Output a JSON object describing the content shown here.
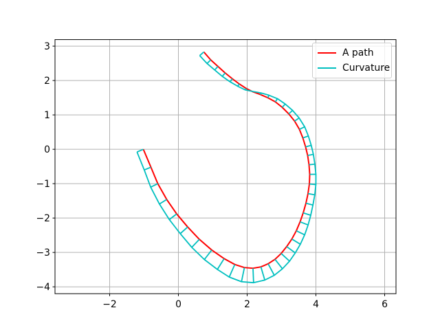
{
  "figure": {
    "background": "#ffffff",
    "spine_color": "#000000",
    "tick_color": "#000000",
    "legend": {
      "position": "upper right",
      "border_color": "#cccccc",
      "entries": [
        {
          "label": "A path",
          "color": "#ff0000"
        },
        {
          "label": "Curvature",
          "color": "#00bfbf"
        }
      ]
    }
  },
  "chart_data": {
    "type": "line",
    "title": "",
    "xlabel": "",
    "ylabel": "",
    "grid": true,
    "grid_color": "#b0b0b0",
    "legend_position": "upper right",
    "xlim": [
      -3.59,
      6.33
    ],
    "ylim": [
      -4.2,
      3.19
    ],
    "xticks": [
      -2,
      0,
      2,
      4,
      6
    ],
    "yticks": [
      -4,
      -3,
      -2,
      -1,
      0,
      1,
      2,
      3
    ],
    "series": [
      {
        "name": "A path",
        "color": "#ff0000",
        "style": "solid-line",
        "points": [
          [
            -1.02,
            0.0
          ],
          [
            -0.8,
            -0.52
          ],
          [
            -0.6,
            -1.0
          ],
          [
            -0.34,
            -1.46
          ],
          [
            -0.05,
            -1.88
          ],
          [
            0.27,
            -2.26
          ],
          [
            0.61,
            -2.62
          ],
          [
            0.97,
            -2.93
          ],
          [
            1.33,
            -3.18
          ],
          [
            1.64,
            -3.35
          ],
          [
            1.92,
            -3.44
          ],
          [
            2.17,
            -3.46
          ],
          [
            2.4,
            -3.42
          ],
          [
            2.61,
            -3.33
          ],
          [
            2.81,
            -3.2
          ],
          [
            2.99,
            -3.03
          ],
          [
            3.15,
            -2.83
          ],
          [
            3.3,
            -2.61
          ],
          [
            3.43,
            -2.37
          ],
          [
            3.54,
            -2.11
          ],
          [
            3.63,
            -1.85
          ],
          [
            3.71,
            -1.57
          ],
          [
            3.77,
            -1.29
          ],
          [
            3.81,
            -1.01
          ],
          [
            3.82,
            -0.73
          ],
          [
            3.8,
            -0.45
          ],
          [
            3.76,
            -0.18
          ],
          [
            3.7,
            0.07
          ],
          [
            3.62,
            0.33
          ],
          [
            3.52,
            0.58
          ],
          [
            3.38,
            0.82
          ],
          [
            3.21,
            1.03
          ],
          [
            3.02,
            1.22
          ],
          [
            2.82,
            1.38
          ],
          [
            2.6,
            1.5
          ],
          [
            2.39,
            1.59
          ],
          [
            2.17,
            1.67
          ],
          [
            1.97,
            1.77
          ],
          [
            1.77,
            1.9
          ],
          [
            1.57,
            2.05
          ],
          [
            1.36,
            2.22
          ],
          [
            1.15,
            2.41
          ],
          [
            0.94,
            2.6
          ],
          [
            0.74,
            2.83
          ]
        ]
      },
      {
        "name": "Curvature",
        "color": "#00bfbf",
        "style": "curvature-comb",
        "base_series": "A path",
        "comb_lengths": [
          0.2,
          0.21,
          0.23,
          0.25,
          0.27,
          0.29,
          0.32,
          0.35,
          0.37,
          0.4,
          0.42,
          0.42,
          0.4,
          0.38,
          0.35,
          0.33,
          0.31,
          0.29,
          0.27,
          0.25,
          0.23,
          0.21,
          0.2,
          0.19,
          0.18,
          0.17,
          0.17,
          0.17,
          0.17,
          0.17,
          0.16,
          0.15,
          0.13,
          0.11,
          0.08,
          0.05,
          0.01,
          -0.05,
          -0.08,
          -0.11,
          -0.13,
          -0.14,
          -0.15,
          -0.16
        ]
      }
    ]
  }
}
